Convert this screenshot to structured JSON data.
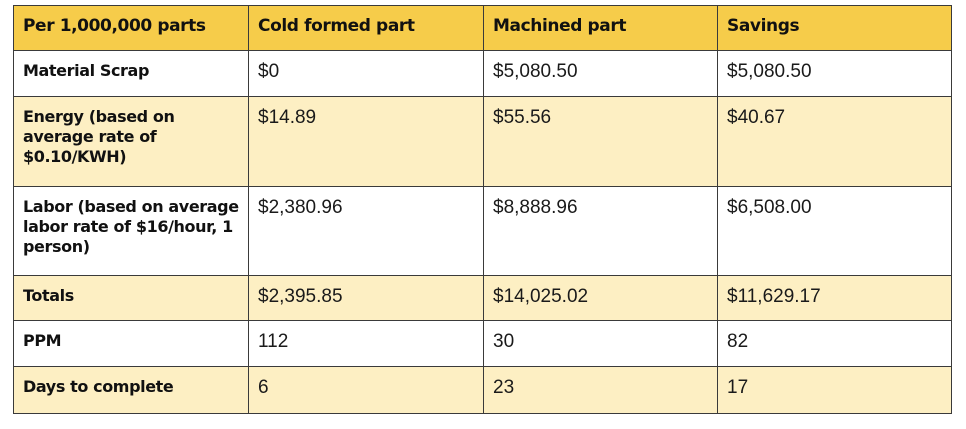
{
  "chart_data": {
    "type": "table",
    "columns": [
      "Per 1,000,000 parts",
      "Cold formed part",
      "Machined part",
      "Savings"
    ],
    "rows": [
      {
        "label": "Material Scrap",
        "cold": "$0",
        "machined": "$5,080.50",
        "savings": "$5,080.50"
      },
      {
        "label": "Energy (based on average rate of $0.10/KWH)",
        "cold": "$14.89",
        "machined": "$55.56",
        "savings": "$40.67"
      },
      {
        "label": "Labor (based on average labor rate of $16/hour, 1 person)",
        "cold": "$2,380.96",
        "machined": "$8,888.96",
        "savings": "$6,508.00"
      },
      {
        "label": "Totals",
        "cold": "$2,395.85",
        "machined": "$14,025.02",
        "savings": "$11,629.17"
      },
      {
        "label": "PPM",
        "cold": "112",
        "machined": "30",
        "savings": "82"
      },
      {
        "label": "Days to complete",
        "cold": "6",
        "machined": "23",
        "savings": "17"
      }
    ]
  },
  "colors": {
    "header": "#f6cc4a",
    "band": "#fdefc3",
    "white": "#ffffff",
    "border": "#3a3a3a"
  }
}
